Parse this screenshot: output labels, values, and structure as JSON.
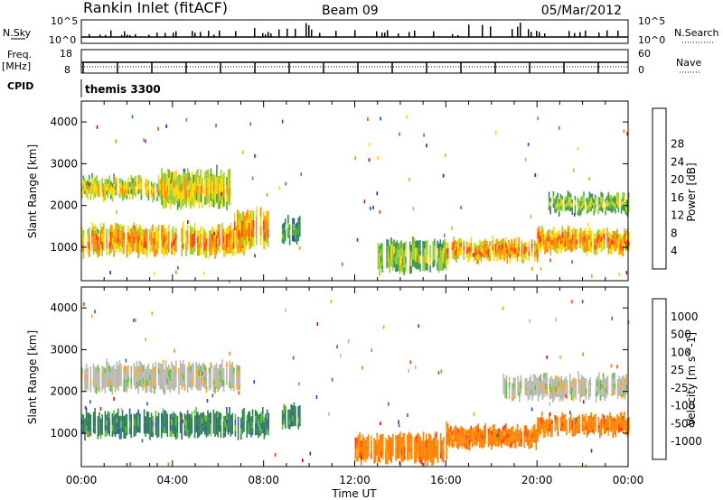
{
  "header": {
    "station": "Rankin Inlet (fitACF)",
    "beam": "Beam 09",
    "date": "05/Mar/2012"
  },
  "summary_panels": {
    "nsky_label": "N.Sky",
    "nsky_ticks": [
      "10^5",
      "10^0"
    ],
    "nsearch_label": "N.Search",
    "nsearch_ticks": [
      "10^5",
      "10^0"
    ],
    "freq_label_1": "Freq.",
    "freq_label_2": "[MHz]",
    "freq_ticks": [
      "18",
      "8"
    ],
    "nave_label": "Nave",
    "nave_ticks": [
      "60",
      "0"
    ],
    "cpid_label": "CPID",
    "cpid_value": "themis 3300"
  },
  "colors": {
    "power": [
      "#1a1aff",
      "#2a46b8",
      "#2e8b57",
      "#43a047",
      "#9acd32",
      "#ffd700",
      "#ff8c00",
      "#ff4500",
      "#e00000"
    ],
    "velocity": [
      "#1f3fc2",
      "#2d5e9e",
      "#2e7d55",
      "#5bbf3a",
      "#b8b8b0",
      "#ffa31a",
      "#ff7f00",
      "#ff4500",
      "#e00000"
    ]
  },
  "chart_data": [
    {
      "type": "heatmap",
      "name": "power",
      "xlabel": "",
      "ylabel": "Slant Range [km]",
      "x_ticks": [
        "00:00",
        "04:00",
        "08:00",
        "12:00",
        "16:00",
        "20:00",
        "00:00"
      ],
      "y_ticks": [
        "1000",
        "2000",
        "3000",
        "4000"
      ],
      "ylim": [
        200,
        4500
      ],
      "colorbar_label": "Power [dB]",
      "colorbar_ticks": [
        "4",
        "8",
        "12",
        "16",
        "20",
        "24",
        "28"
      ],
      "bands": [
        {
          "t_start": 0.0,
          "t_end": 3.5,
          "range_low": 2150,
          "range_high": 2700,
          "level": 6
        },
        {
          "t_start": 3.5,
          "t_end": 6.5,
          "range_low": 1950,
          "range_high": 2850,
          "level": 6
        },
        {
          "t_start": 0.0,
          "t_end": 7.2,
          "range_low": 800,
          "range_high": 1550,
          "level": 7
        },
        {
          "t_start": 6.7,
          "t_end": 8.2,
          "range_low": 950,
          "range_high": 1900,
          "level": 7
        },
        {
          "t_start": 8.8,
          "t_end": 9.6,
          "range_low": 1100,
          "range_high": 1700,
          "level": 4
        },
        {
          "t_start": 13.0,
          "t_end": 16.0,
          "range_low": 400,
          "range_high": 1200,
          "level": 5
        },
        {
          "t_start": 16.0,
          "t_end": 20.0,
          "range_low": 650,
          "range_high": 1200,
          "level": 7
        },
        {
          "t_start": 20.0,
          "t_end": 24.0,
          "range_low": 850,
          "range_high": 1450,
          "level": 7
        },
        {
          "t_start": 20.5,
          "t_end": 24.0,
          "range_low": 1800,
          "range_high": 2300,
          "level": 5
        }
      ]
    },
    {
      "type": "heatmap",
      "name": "velocity",
      "xlabel": "Time UT",
      "ylabel": "Slant Range [km]",
      "x_ticks": [
        "00:00",
        "04:00",
        "08:00",
        "12:00",
        "16:00",
        "20:00",
        "00:00"
      ],
      "y_ticks": [
        "1000",
        "2000",
        "3000",
        "4000"
      ],
      "ylim": [
        200,
        4500
      ],
      "colorbar_label": "Velocity [m s^-1]",
      "colorbar_ticks": [
        "1000",
        "500",
        "100",
        "25",
        "-25",
        "-100",
        "-500",
        "-1000"
      ],
      "bands": [
        {
          "t_start": 0.0,
          "t_end": 7.0,
          "range_low": 2000,
          "range_high": 2700,
          "level": 4
        },
        {
          "t_start": 0.0,
          "t_end": 8.2,
          "range_low": 900,
          "range_high": 1550,
          "level": 2
        },
        {
          "t_start": 8.8,
          "t_end": 9.6,
          "range_low": 1100,
          "range_high": 1700,
          "level": 2
        },
        {
          "t_start": 12.0,
          "t_end": 16.0,
          "range_low": 300,
          "range_high": 1000,
          "level": 6
        },
        {
          "t_start": 16.0,
          "t_end": 20.0,
          "range_low": 650,
          "range_high": 1200,
          "level": 6
        },
        {
          "t_start": 20.0,
          "t_end": 24.0,
          "range_low": 950,
          "range_high": 1450,
          "level": 6
        },
        {
          "t_start": 18.5,
          "t_end": 24.0,
          "range_low": 1800,
          "range_high": 2400,
          "level": 4
        }
      ]
    }
  ]
}
